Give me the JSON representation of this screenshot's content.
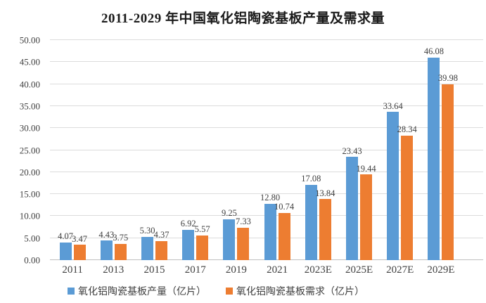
{
  "chart_data": {
    "type": "bar",
    "title": "2011-2029 年中国氧化铝陶瓷基板产量及需求量",
    "categories": [
      "2011",
      "2013",
      "2015",
      "2017",
      "2019",
      "2021",
      "2023E",
      "2025E",
      "2027E",
      "2029E"
    ],
    "series": [
      {
        "name": "氧化铝陶瓷基板产量（亿片）",
        "color": "#5B9BD5",
        "values": [
          4.07,
          4.43,
          5.3,
          6.92,
          9.25,
          12.8,
          17.08,
          23.43,
          33.64,
          46.08
        ]
      },
      {
        "name": "氧化铝陶瓷基板需求（亿片）",
        "color": "#ED7D31",
        "values": [
          3.47,
          3.75,
          4.37,
          5.57,
          7.33,
          10.74,
          13.84,
          19.44,
          28.34,
          39.98
        ]
      }
    ],
    "ylim": [
      0,
      50
    ],
    "ytick_labels": [
      "0.00",
      "5.00",
      "10.00",
      "15.00",
      "20.00",
      "25.00",
      "30.00",
      "35.00",
      "40.00",
      "45.00",
      "50.00"
    ],
    "grid": true,
    "legend_position": "bottom",
    "data_labels": true,
    "data_label_decimals": 2,
    "colors": {
      "grid": "#DCDCDC",
      "axis_line": "#C0C0C0",
      "label_text": "#404040",
      "title_text": "#1A1A1A",
      "background": "#FFFFFF"
    }
  }
}
